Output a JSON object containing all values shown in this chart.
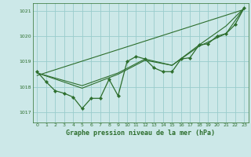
{
  "title": "Graphe pression niveau de la mer (hPa)",
  "background_color": "#cce8e8",
  "grid_color": "#99cccc",
  "line_color": "#2d6e2d",
  "xlim": [
    -0.5,
    23.5
  ],
  "ylim": [
    1016.6,
    1021.3
  ],
  "yticks": [
    1017,
    1018,
    1019,
    1020,
    1021
  ],
  "xticks": [
    0,
    1,
    2,
    3,
    4,
    5,
    6,
    7,
    8,
    9,
    10,
    11,
    12,
    13,
    14,
    15,
    16,
    17,
    18,
    19,
    20,
    21,
    22,
    23
  ],
  "main_line": {
    "x": [
      0,
      1,
      2,
      3,
      4,
      5,
      6,
      7,
      8,
      9,
      10,
      11,
      12,
      13,
      14,
      15,
      16,
      17,
      18,
      19,
      20,
      21,
      22,
      23
    ],
    "y": [
      1018.6,
      1018.2,
      1017.85,
      1017.75,
      1017.6,
      1017.15,
      1017.55,
      1017.55,
      1018.3,
      1017.65,
      1019.0,
      1019.2,
      1019.1,
      1018.75,
      1018.6,
      1018.6,
      1019.1,
      1019.15,
      1019.65,
      1019.7,
      1020.0,
      1020.1,
      1020.45,
      1021.1
    ]
  },
  "smooth_lines": [
    {
      "x": [
        0,
        5,
        9,
        12,
        15,
        18,
        21,
        23
      ],
      "y": [
        1018.55,
        1017.95,
        1018.5,
        1019.05,
        1018.85,
        1019.6,
        1020.1,
        1021.1
      ]
    },
    {
      "x": [
        0,
        5,
        9,
        12,
        15,
        18,
        21,
        23
      ],
      "y": [
        1018.55,
        1018.05,
        1018.55,
        1019.1,
        1018.85,
        1019.65,
        1020.4,
        1021.1
      ]
    },
    {
      "x": [
        0,
        23
      ],
      "y": [
        1018.45,
        1021.05
      ]
    }
  ]
}
